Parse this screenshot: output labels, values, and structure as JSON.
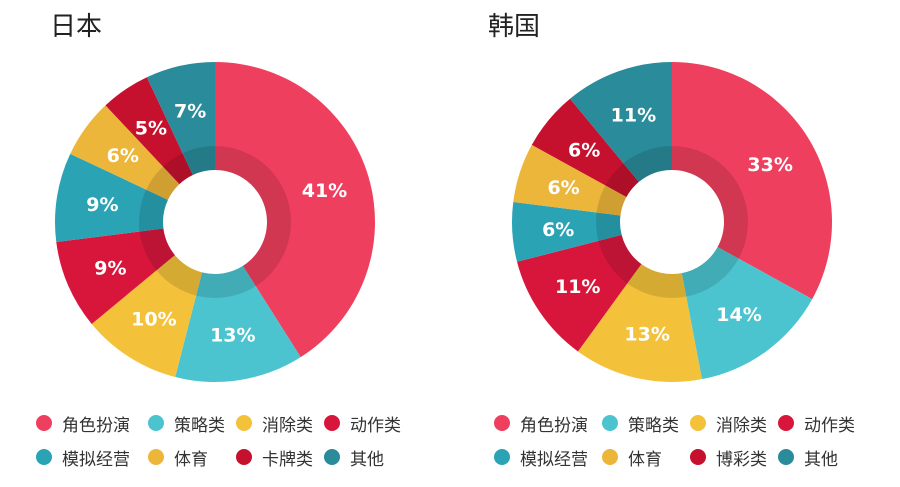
{
  "colors": {
    "role_play": "#ef3f5e",
    "strategy": "#4bc4cf",
    "puzzle": "#f3c23a",
    "action": "#d8163c",
    "simulation": "#2aa3b5",
    "sports": "#ecb63a",
    "card_lottery": "#c5102e",
    "other": "#2a8b9a"
  },
  "chart_data": [
    {
      "type": "pie",
      "title": "日本",
      "slices": [
        {
          "label": "角色扮演",
          "value": 41,
          "display": "41%",
          "color": "#ef3f5e"
        },
        {
          "label": "策略类",
          "value": 13,
          "display": "13%",
          "color": "#4bc4cf"
        },
        {
          "label": "消除类",
          "value": 10,
          "display": "10%",
          "color": "#f3c23a"
        },
        {
          "label": "动作类",
          "value": 9,
          "display": "9%",
          "color": "#d8163c"
        },
        {
          "label": "模拟经营",
          "value": 9,
          "display": "9%",
          "color": "#2aa3b5"
        },
        {
          "label": "体育",
          "value": 6,
          "display": "6%",
          "color": "#ecb63a"
        },
        {
          "label": "卡牌类",
          "value": 5,
          "display": "5%",
          "color": "#c5102e"
        },
        {
          "label": "其他",
          "value": 7,
          "display": "7%",
          "color": "#2a8b9a"
        }
      ],
      "legend": [
        "角色扮演",
        "策略类",
        "消除类",
        "动作类",
        "模拟经营",
        "体育",
        "卡牌类",
        "其他"
      ],
      "legend_placement": "bottom"
    },
    {
      "type": "pie",
      "title": "韩国",
      "slices": [
        {
          "label": "角色扮演",
          "value": 33,
          "display": "33%",
          "color": "#ef3f5e"
        },
        {
          "label": "策略类",
          "value": 14,
          "display": "14%",
          "color": "#4bc4cf"
        },
        {
          "label": "消除类",
          "value": 13,
          "display": "13%",
          "color": "#f3c23a"
        },
        {
          "label": "动作类",
          "value": 11,
          "display": "11%",
          "color": "#d8163c"
        },
        {
          "label": "模拟经营",
          "value": 6,
          "display": "6%",
          "color": "#2aa3b5"
        },
        {
          "label": "体育",
          "value": 6,
          "display": "6%",
          "color": "#ecb63a"
        },
        {
          "label": "博彩类",
          "value": 6,
          "display": "6%",
          "color": "#c5102e"
        },
        {
          "label": "其他",
          "value": 11,
          "display": "11%",
          "color": "#2a8b9a"
        }
      ],
      "legend": [
        "角色扮演",
        "策略类",
        "消除类",
        "动作类",
        "模拟经营",
        "体育",
        "博彩类",
        "其他"
      ],
      "legend_placement": "bottom"
    }
  ]
}
